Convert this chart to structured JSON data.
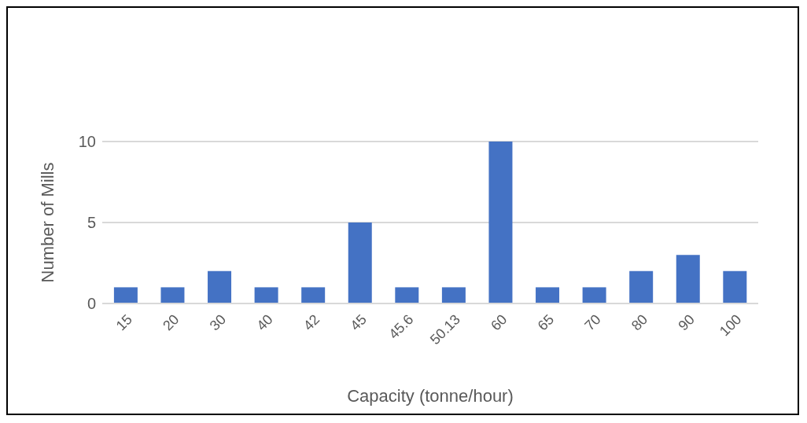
{
  "chart_data": {
    "type": "bar",
    "xlabel": "Capacity (tonne/hour)",
    "ylabel": "Number of Mills",
    "categories": [
      "15",
      "20",
      "30",
      "40",
      "42",
      "45",
      "45.6",
      "50.13",
      "60",
      "65",
      "70",
      "80",
      "90",
      "100"
    ],
    "values": [
      1,
      1,
      2,
      1,
      1,
      5,
      1,
      1,
      10,
      1,
      1,
      2,
      3,
      2
    ],
    "color": "#4472c4",
    "ylim": [
      0,
      10
    ],
    "yticks": [
      0,
      5,
      10
    ],
    "grid": "y"
  }
}
